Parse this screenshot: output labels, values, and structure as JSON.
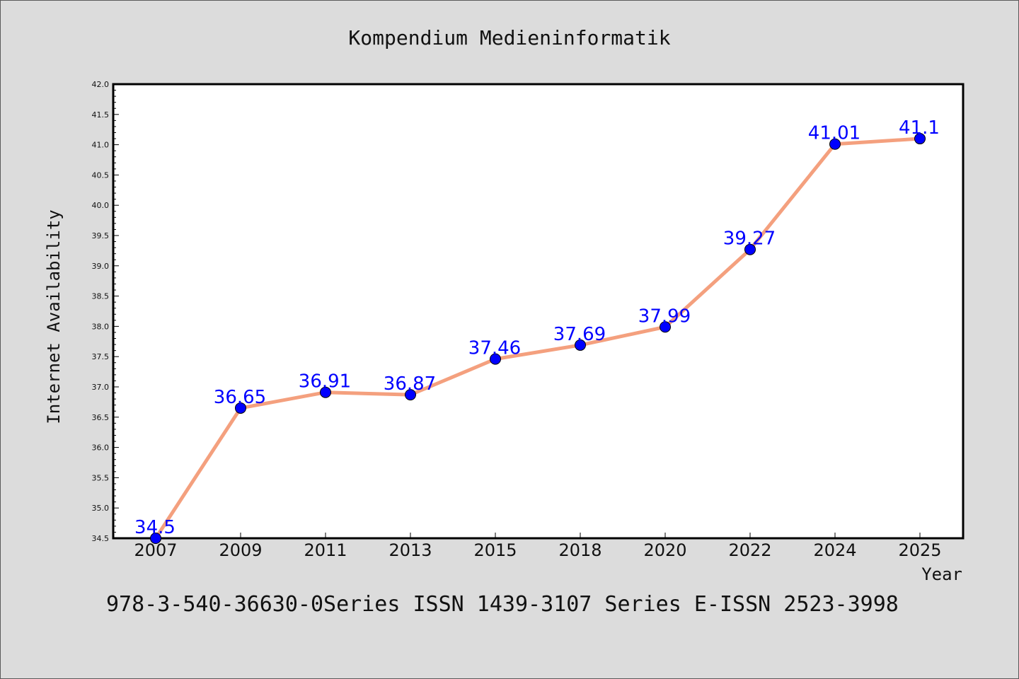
{
  "chart_data": {
    "type": "line",
    "title": "Kompendium Medieninformatik",
    "xlabel": "Year",
    "ylabel": "Internet Availability",
    "categories": [
      "2007",
      "2009",
      "2011",
      "2013",
      "2015",
      "2018",
      "2020",
      "2022",
      "2024",
      "2025"
    ],
    "values": [
      34.5,
      36.65,
      36.91,
      36.87,
      37.46,
      37.69,
      37.99,
      39.27,
      41.01,
      41.1
    ],
    "data_labels": [
      "34.5",
      "36.65",
      "36.91",
      "36.87",
      "37.46",
      "37.69",
      "37.99",
      "39.27",
      "41.01",
      "41.1"
    ],
    "ylim": [
      34.5,
      42.0
    ],
    "yticks": [
      "34.5",
      "35.0",
      "35.5",
      "36.0",
      "36.5",
      "37.0",
      "37.5",
      "38.0",
      "38.5",
      "39.0",
      "39.5",
      "40.0",
      "40.5",
      "41.0",
      "41.5",
      "42.0"
    ],
    "grid": false,
    "colors": {
      "line": "#f4a07e",
      "marker": "#0000ff",
      "label": "#0000ff",
      "background": "#dcdcdc",
      "plot_background": "#ffffff"
    }
  },
  "footer": {
    "text": "978-3-540-36630-0Series ISSN 1439-3107 Series E-ISSN 2523-3998"
  }
}
